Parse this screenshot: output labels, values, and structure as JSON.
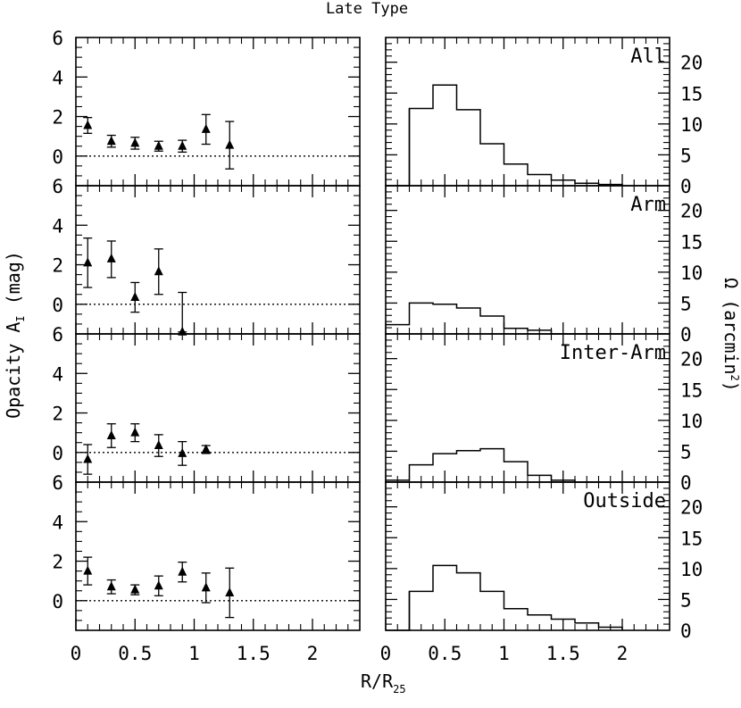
{
  "figure": {
    "title": "Late Type",
    "shared_xlabel_main": "R/R",
    "shared_xlabel_sub": "25"
  },
  "chart_data": [
    {
      "type": "scatter",
      "panel": "left-1",
      "ylabel_main": "Opacity A",
      "ylabel_sub": "I",
      "ylabel_tail": " (mag)",
      "xlim": [
        0,
        2.4
      ],
      "ylim": [
        -1.5,
        6
      ],
      "xticks": [
        0,
        0.5,
        1,
        1.5,
        2
      ],
      "xtick_labels": [
        "0",
        "0.5",
        "1",
        "1.5",
        "2"
      ],
      "yticks": [
        0,
        2,
        4,
        6
      ],
      "ytick_labels": [
        "0",
        "2",
        "4",
        "6"
      ],
      "reference_line": 0,
      "points": [
        {
          "x": 0.1,
          "y": 1.55,
          "err_lo": 0.4,
          "err_hi": 0.4
        },
        {
          "x": 0.3,
          "y": 0.75,
          "err_lo": 0.3,
          "err_hi": 0.3
        },
        {
          "x": 0.5,
          "y": 0.65,
          "err_lo": 0.3,
          "err_hi": 0.3
        },
        {
          "x": 0.7,
          "y": 0.5,
          "err_lo": 0.25,
          "err_hi": 0.25
        },
        {
          "x": 0.9,
          "y": 0.5,
          "err_lo": 0.3,
          "err_hi": 0.3
        },
        {
          "x": 1.1,
          "y": 1.35,
          "err_lo": 0.75,
          "err_hi": 0.75
        },
        {
          "x": 1.3,
          "y": 0.55,
          "err_lo": 1.2,
          "err_hi": 1.2
        }
      ]
    },
    {
      "type": "scatter",
      "panel": "left-2",
      "xlim": [
        0,
        2.4
      ],
      "ylim": [
        -1.5,
        6
      ],
      "yticks": [
        0,
        2,
        4,
        6
      ],
      "ytick_labels": [
        "0",
        "2",
        "4",
        "6"
      ],
      "reference_line": 0,
      "points": [
        {
          "x": 0.1,
          "y": 2.1,
          "err_lo": 1.25,
          "err_hi": 1.25
        },
        {
          "x": 0.3,
          "y": 2.3,
          "err_lo": 0.95,
          "err_hi": 0.9
        },
        {
          "x": 0.5,
          "y": 0.35,
          "err_lo": 0.75,
          "err_hi": 0.75
        },
        {
          "x": 0.7,
          "y": 1.65,
          "err_lo": 1.15,
          "err_hi": 1.15
        },
        {
          "x": 0.9,
          "y": -1.4,
          "err_lo": 0.0,
          "err_hi": 2.0
        }
      ]
    },
    {
      "type": "scatter",
      "panel": "left-3",
      "xlim": [
        0,
        2.4
      ],
      "ylim": [
        -1.5,
        6
      ],
      "yticks": [
        0,
        2,
        4,
        6
      ],
      "ytick_labels": [
        "0",
        "2",
        "4",
        "6"
      ],
      "reference_line": 0,
      "points": [
        {
          "x": 0.1,
          "y": -0.35,
          "err_lo": 0.75,
          "err_hi": 0.75
        },
        {
          "x": 0.3,
          "y": 0.85,
          "err_lo": 0.6,
          "err_hi": 0.6
        },
        {
          "x": 0.5,
          "y": 1.0,
          "err_lo": 0.45,
          "err_hi": 0.45
        },
        {
          "x": 0.7,
          "y": 0.35,
          "err_lo": 0.55,
          "err_hi": 0.55
        },
        {
          "x": 0.9,
          "y": -0.05,
          "err_lo": 0.6,
          "err_hi": 0.6
        },
        {
          "x": 1.1,
          "y": 0.15,
          "err_lo": 0.2,
          "err_hi": 0.2
        }
      ]
    },
    {
      "type": "scatter",
      "panel": "left-4",
      "xlim": [
        0,
        2.4
      ],
      "ylim": [
        -1.5,
        6
      ],
      "yticks": [
        0,
        2,
        4,
        6
      ],
      "ytick_labels": [
        "0",
        "2",
        "4",
        "6"
      ],
      "reference_line": 0,
      "points": [
        {
          "x": 0.1,
          "y": 1.5,
          "err_lo": 0.7,
          "err_hi": 0.7
        },
        {
          "x": 0.3,
          "y": 0.7,
          "err_lo": 0.35,
          "err_hi": 0.35
        },
        {
          "x": 0.5,
          "y": 0.55,
          "err_lo": 0.25,
          "err_hi": 0.25
        },
        {
          "x": 0.7,
          "y": 0.75,
          "err_lo": 0.5,
          "err_hi": 0.5
        },
        {
          "x": 0.9,
          "y": 1.45,
          "err_lo": 0.5,
          "err_hi": 0.5
        },
        {
          "x": 1.1,
          "y": 0.65,
          "err_lo": 0.75,
          "err_hi": 0.75
        },
        {
          "x": 1.3,
          "y": 0.4,
          "err_lo": 1.25,
          "err_hi": 1.25
        }
      ]
    },
    {
      "type": "histogram",
      "panel": "right-1",
      "label": "All",
      "ylabel_main": "Ω (arcmin",
      "ylabel_sup": "2",
      "ylabel_tail": ")",
      "xlim": [
        0,
        2.4
      ],
      "ylim": [
        0,
        24
      ],
      "yticks": [
        0,
        5,
        10,
        15,
        20
      ],
      "ytick_labels": [
        "0",
        "5",
        "10",
        "15",
        "20"
      ],
      "bin_edges": [
        0,
        0.2,
        0.4,
        0.6,
        0.8,
        1.0,
        1.2,
        1.4,
        1.6,
        1.8,
        2.0
      ],
      "values": [
        0,
        12.5,
        16.3,
        12.3,
        6.8,
        3.5,
        1.8,
        0.9,
        0.4,
        0.2
      ]
    },
    {
      "type": "histogram",
      "panel": "right-2",
      "label": "Arm",
      "xlim": [
        0,
        2.4
      ],
      "ylim": [
        0,
        24
      ],
      "yticks": [
        0,
        5,
        10,
        15,
        20
      ],
      "ytick_labels": [
        "0",
        "5",
        "10",
        "15",
        "20"
      ],
      "bin_edges": [
        0,
        0.2,
        0.4,
        0.6,
        0.8,
        1.0,
        1.2,
        1.4,
        1.6,
        1.8,
        2.0
      ],
      "values": [
        1.5,
        5.0,
        4.8,
        4.2,
        2.9,
        0.9,
        0.6,
        0,
        0,
        0
      ]
    },
    {
      "type": "histogram",
      "panel": "right-3",
      "label": "Inter-Arm",
      "xlim": [
        0,
        2.4
      ],
      "ylim": [
        0,
        24
      ],
      "yticks": [
        0,
        5,
        10,
        15,
        20
      ],
      "ytick_labels": [
        "0",
        "5",
        "10",
        "15",
        "20"
      ],
      "bin_edges": [
        0,
        0.2,
        0.4,
        0.6,
        0.8,
        1.0,
        1.2,
        1.4,
        1.6,
        1.8,
        2.0
      ],
      "values": [
        0.3,
        2.8,
        4.6,
        5.1,
        5.4,
        3.3,
        1.1,
        0.3,
        0,
        0
      ]
    },
    {
      "type": "histogram",
      "panel": "right-4",
      "label": "Outside",
      "xlim": [
        0,
        2.4
      ],
      "ylim": [
        0,
        24
      ],
      "yticks": [
        0,
        5,
        10,
        15,
        20
      ],
      "ytick_labels": [
        "0",
        "5",
        "10",
        "15",
        "20"
      ],
      "xticks": [
        0,
        0.5,
        1,
        1.5,
        2
      ],
      "xtick_labels": [
        "0",
        "0.5",
        "1",
        "1.5",
        "2"
      ],
      "bin_edges": [
        0,
        0.2,
        0.4,
        0.6,
        0.8,
        1.0,
        1.2,
        1.4,
        1.6,
        1.8,
        2.0
      ],
      "values": [
        0,
        6.3,
        10.5,
        9.3,
        6.3,
        3.5,
        2.5,
        1.8,
        1.2,
        0.5
      ]
    }
  ]
}
